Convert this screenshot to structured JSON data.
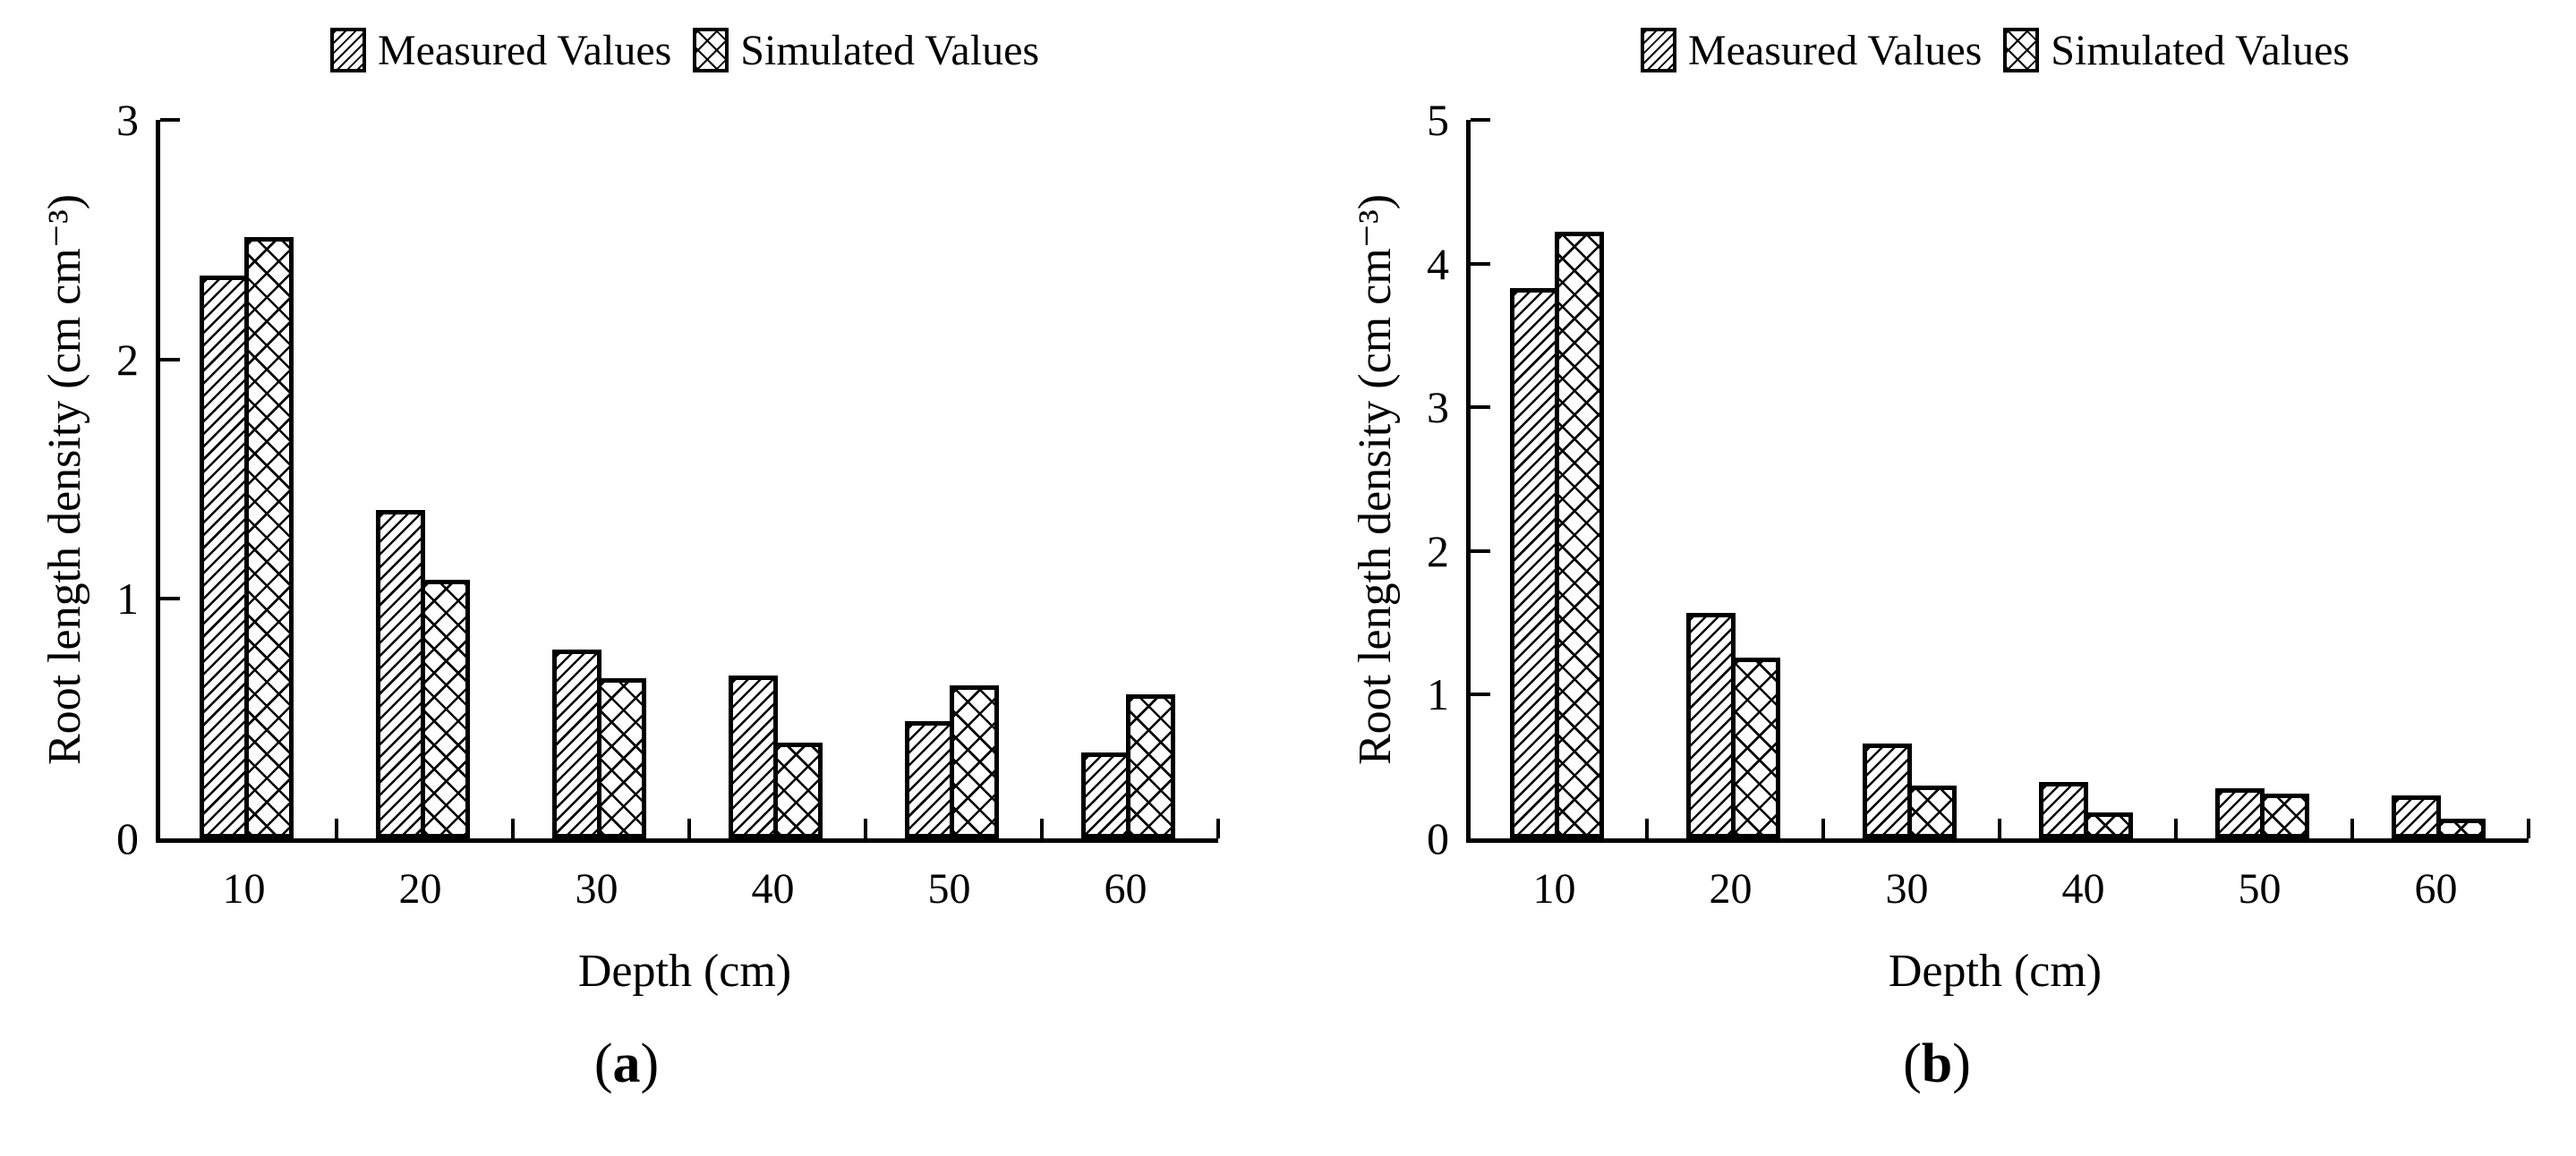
{
  "figure": {
    "background": "#ffffff",
    "ink": "#000000",
    "series_patterns": {
      "measured": "diagonal-hatch",
      "simulated": "cross-hatch"
    }
  },
  "chart_data": [
    {
      "type": "bar",
      "panel_letter": "a",
      "panel_label_open": "(",
      "panel_label_close": ")",
      "title": "",
      "xlabel": "Depth (cm)",
      "ylabel": "Root length density (cm cm⁻³)",
      "categories": [
        "10",
        "20",
        "30",
        "40",
        "50",
        "60"
      ],
      "series": [
        {
          "name": "Measured Values",
          "pattern": "diagonal-hatch",
          "values": [
            2.35,
            1.37,
            0.79,
            0.68,
            0.49,
            0.36
          ]
        },
        {
          "name": "Simulated Values",
          "pattern": "cross-hatch",
          "values": [
            2.51,
            1.08,
            0.67,
            0.4,
            0.64,
            0.6
          ]
        }
      ],
      "ylim": [
        0,
        3
      ],
      "ytick_step": 1,
      "grid": false,
      "legend_position": "top"
    },
    {
      "type": "bar",
      "panel_letter": "b",
      "panel_label_open": "(",
      "panel_label_close": ")",
      "title": "",
      "xlabel": "Depth (cm)",
      "ylabel": "Root length density (cm cm⁻³)",
      "categories": [
        "10",
        "20",
        "30",
        "40",
        "50",
        "60"
      ],
      "series": [
        {
          "name": "Measured Values",
          "pattern": "diagonal-hatch",
          "values": [
            3.83,
            1.57,
            0.66,
            0.39,
            0.35,
            0.3
          ]
        },
        {
          "name": "Simulated Values",
          "pattern": "cross-hatch",
          "values": [
            4.22,
            1.26,
            0.37,
            0.18,
            0.31,
            0.14
          ]
        }
      ],
      "ylim": [
        0,
        5
      ],
      "ytick_step": 1,
      "grid": false,
      "legend_position": "top"
    }
  ]
}
